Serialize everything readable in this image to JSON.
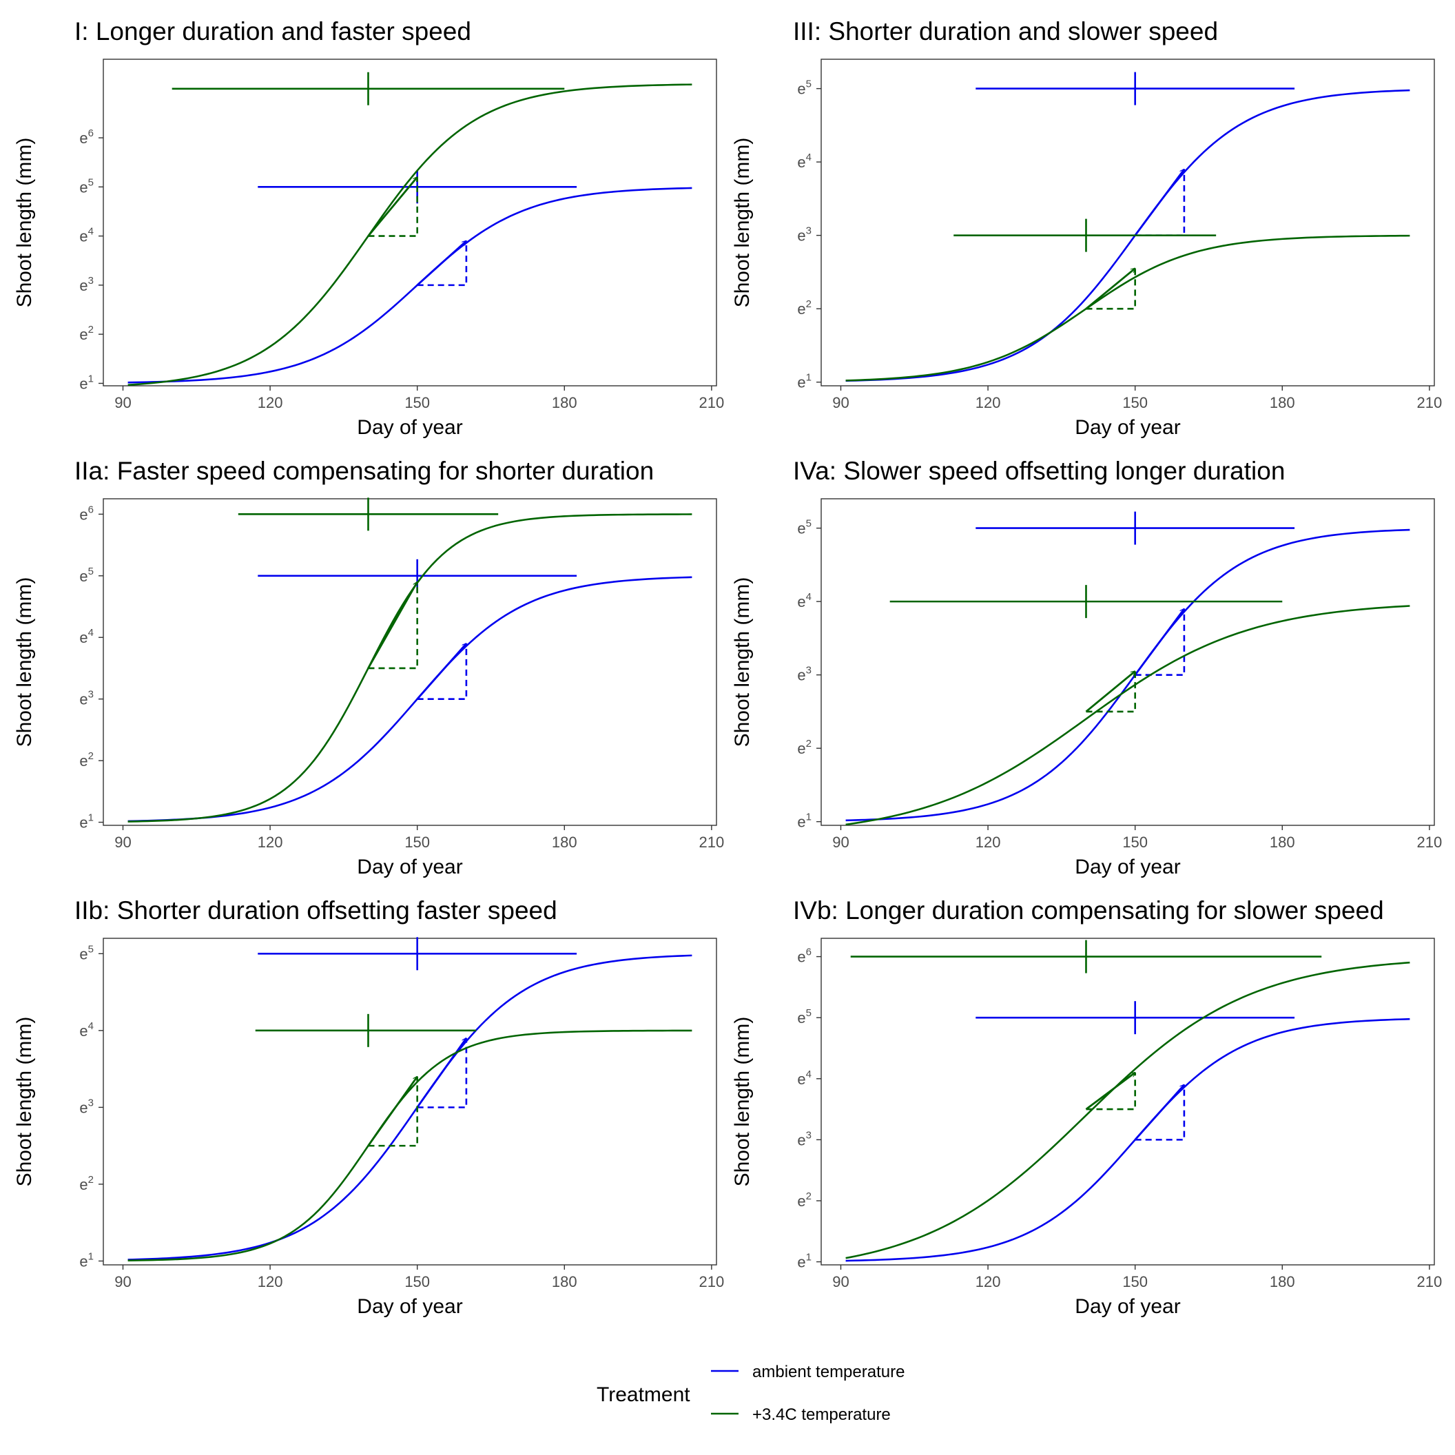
{
  "colors": {
    "ambient": "#0000ee",
    "warm": "#006400"
  },
  "legend": {
    "title": "Treatment",
    "items": [
      {
        "label": "ambient temperature",
        "color_key": "ambient"
      },
      {
        "label": "+3.4C temperature",
        "color_key": "warm"
      }
    ]
  },
  "chart_data": [
    {
      "type": "line",
      "title": "I: Longer duration and faster speed",
      "xlabel": "Day of year",
      "ylabel": "Shoot length (mm)",
      "xlim": [
        86,
        211
      ],
      "ylim": [
        0.95,
        7.6
      ],
      "xticks": [
        90,
        120,
        150,
        180,
        210
      ],
      "yticks": [
        1,
        2,
        3,
        4,
        5,
        6
      ],
      "y_tick_base": "e",
      "grid": false,
      "series": [
        {
          "name": "ambient temperature",
          "color_key": "ambient",
          "growth": {
            "start_day": 91,
            "end_day": 206,
            "y_min": 1.0,
            "y_max": 5.0,
            "midpoint_day": 150,
            "rate": 0.092
          },
          "duration_bar": {
            "y": 5.0,
            "start": 117.5,
            "end": 182.5,
            "center": 150
          },
          "slope_marker": {
            "x_start": 150,
            "x_end": 160,
            "y_start": 3.0,
            "y_end": 3.9
          }
        },
        {
          "name": "+3.4C temperature",
          "color_key": "warm",
          "growth": {
            "start_day": 91,
            "end_day": 206,
            "y_min": 0.9,
            "y_max": 7.1,
            "midpoint_day": 140,
            "rate": 0.092
          },
          "duration_bar": {
            "y": 7.0,
            "start": 100,
            "end": 180,
            "center": 140
          },
          "slope_marker": {
            "x_start": 140,
            "x_end": 150,
            "y_start": 4.0,
            "y_end": 5.2
          }
        }
      ]
    },
    {
      "type": "line",
      "title": "III: Shorter duration and slower speed",
      "xlabel": "Day of year",
      "ylabel": "Shoot length (mm)",
      "xlim": [
        86,
        211
      ],
      "ylim": [
        0.95,
        5.4
      ],
      "xticks": [
        90,
        120,
        150,
        180,
        210
      ],
      "yticks": [
        1,
        2,
        3,
        4,
        5
      ],
      "y_tick_base": "e",
      "grid": false,
      "series": [
        {
          "name": "ambient temperature",
          "color_key": "ambient",
          "growth": {
            "start_day": 91,
            "end_day": 206,
            "y_min": 1.0,
            "y_max": 5.0,
            "midpoint_day": 150,
            "rate": 0.092
          },
          "duration_bar": {
            "y": 5.0,
            "start": 117.5,
            "end": 182.5,
            "center": 150
          },
          "slope_marker": {
            "x_start": 150,
            "x_end": 160,
            "y_start": 3.0,
            "y_end": 3.9
          }
        },
        {
          "name": "+3.4C temperature",
          "color_key": "warm",
          "growth": {
            "start_day": 91,
            "end_day": 206,
            "y_min": 1.0,
            "y_max": 3.0,
            "midpoint_day": 140,
            "rate": 0.092
          },
          "duration_bar": {
            "y": 3.0,
            "start": 113,
            "end": 166.5,
            "center": 140
          },
          "slope_marker": {
            "x_start": 140,
            "x_end": 150,
            "y_start": 2.0,
            "y_end": 2.55
          }
        }
      ]
    },
    {
      "type": "line",
      "title": "IIa: Faster speed compensating for shorter duration",
      "xlabel": "Day of year",
      "ylabel": "Shoot length (mm)",
      "xlim": [
        86,
        211
      ],
      "ylim": [
        0.95,
        6.25
      ],
      "xticks": [
        90,
        120,
        150,
        180,
        210
      ],
      "yticks": [
        1,
        2,
        3,
        4,
        5,
        6
      ],
      "y_tick_base": "e",
      "grid": false,
      "series": [
        {
          "name": "ambient temperature",
          "color_key": "ambient",
          "growth": {
            "start_day": 91,
            "end_day": 206,
            "y_min": 1.0,
            "y_max": 5.0,
            "midpoint_day": 150,
            "rate": 0.092
          },
          "duration_bar": {
            "y": 5.0,
            "start": 117.5,
            "end": 182.5,
            "center": 150
          },
          "slope_marker": {
            "x_start": 150,
            "x_end": 160,
            "y_start": 3.0,
            "y_end": 3.9
          }
        },
        {
          "name": "+3.4C temperature",
          "color_key": "warm",
          "growth": {
            "start_day": 91,
            "end_day": 206,
            "y_min": 1.0,
            "y_max": 6.0,
            "midpoint_day": 140,
            "rate": 0.125
          },
          "duration_bar": {
            "y": 6.0,
            "start": 113.5,
            "end": 166.5,
            "center": 140
          },
          "slope_marker": {
            "x_start": 140,
            "x_end": 150,
            "y_start": 3.5,
            "y_end": 4.9
          }
        }
      ]
    },
    {
      "type": "line",
      "title": "IVa: Slower speed offsetting longer duration",
      "xlabel": "Day of year",
      "ylabel": "Shoot length (mm)",
      "xlim": [
        86,
        211
      ],
      "ylim": [
        0.95,
        5.4
      ],
      "xticks": [
        90,
        120,
        150,
        180,
        210
      ],
      "yticks": [
        1,
        2,
        3,
        4,
        5
      ],
      "y_tick_base": "e",
      "grid": false,
      "series": [
        {
          "name": "ambient temperature",
          "color_key": "ambient",
          "growth": {
            "start_day": 91,
            "end_day": 206,
            "y_min": 1.0,
            "y_max": 5.0,
            "midpoint_day": 150,
            "rate": 0.092
          },
          "duration_bar": {
            "y": 5.0,
            "start": 117.5,
            "end": 182.5,
            "center": 150
          },
          "slope_marker": {
            "x_start": 150,
            "x_end": 160,
            "y_start": 3.0,
            "y_end": 3.9
          }
        },
        {
          "name": "+3.4C temperature",
          "color_key": "warm",
          "growth": {
            "start_day": 91,
            "end_day": 206,
            "y_min": 0.8,
            "y_max": 4.0,
            "midpoint_day": 140,
            "rate": 0.06
          },
          "duration_bar": {
            "y": 4.0,
            "start": 100,
            "end": 180,
            "center": 140
          },
          "slope_marker": {
            "x_start": 140,
            "x_end": 150,
            "y_start": 2.5,
            "y_end": 3.05
          }
        }
      ]
    },
    {
      "type": "line",
      "title": "IIb: Shorter duration offsetting faster speed",
      "xlabel": "Day of year",
      "ylabel": "Shoot length (mm)",
      "xlim": [
        86,
        211
      ],
      "ylim": [
        0.95,
        5.2
      ],
      "xticks": [
        90,
        120,
        150,
        180,
        210
      ],
      "yticks": [
        1,
        2,
        3,
        4,
        5
      ],
      "y_tick_base": "e",
      "grid": false,
      "series": [
        {
          "name": "ambient temperature",
          "color_key": "ambient",
          "growth": {
            "start_day": 91,
            "end_day": 206,
            "y_min": 1.0,
            "y_max": 5.0,
            "midpoint_day": 150,
            "rate": 0.092
          },
          "duration_bar": {
            "y": 5.0,
            "start": 117.5,
            "end": 182.5,
            "center": 150
          },
          "slope_marker": {
            "x_start": 150,
            "x_end": 160,
            "y_start": 3.0,
            "y_end": 3.9
          }
        },
        {
          "name": "+3.4C temperature",
          "color_key": "warm",
          "growth": {
            "start_day": 91,
            "end_day": 206,
            "y_min": 1.0,
            "y_max": 4.0,
            "midpoint_day": 140,
            "rate": 0.125
          },
          "duration_bar": {
            "y": 4.0,
            "start": 117,
            "end": 162,
            "center": 140
          },
          "slope_marker": {
            "x_start": 140,
            "x_end": 150,
            "y_start": 2.5,
            "y_end": 3.4
          }
        }
      ]
    },
    {
      "type": "line",
      "title": "IVb: Longer duration compensating for slower speed",
      "xlabel": "Day of year",
      "ylabel": "Shoot length (mm)",
      "xlim": [
        86,
        211
      ],
      "ylim": [
        0.95,
        6.3
      ],
      "xticks": [
        90,
        120,
        150,
        180,
        210
      ],
      "yticks": [
        1,
        2,
        3,
        4,
        5,
        6
      ],
      "y_tick_base": "e",
      "grid": false,
      "series": [
        {
          "name": "ambient temperature",
          "color_key": "ambient",
          "growth": {
            "start_day": 91,
            "end_day": 206,
            "y_min": 1.0,
            "y_max": 5.0,
            "midpoint_day": 150,
            "rate": 0.092
          },
          "duration_bar": {
            "y": 5.0,
            "start": 117.5,
            "end": 182.5,
            "center": 150
          },
          "slope_marker": {
            "x_start": 150,
            "x_end": 160,
            "y_start": 3.0,
            "y_end": 3.9
          }
        },
        {
          "name": "+3.4C temperature",
          "color_key": "warm",
          "growth": {
            "start_day": 91,
            "end_day": 206,
            "y_min": 0.8,
            "y_max": 6.0,
            "midpoint_day": 140,
            "rate": 0.06
          },
          "duration_bar": {
            "y": 6.0,
            "start": 92,
            "end": 188,
            "center": 140
          },
          "slope_marker": {
            "x_start": 140,
            "x_end": 150,
            "y_start": 3.5,
            "y_end": 4.1
          }
        }
      ]
    }
  ]
}
